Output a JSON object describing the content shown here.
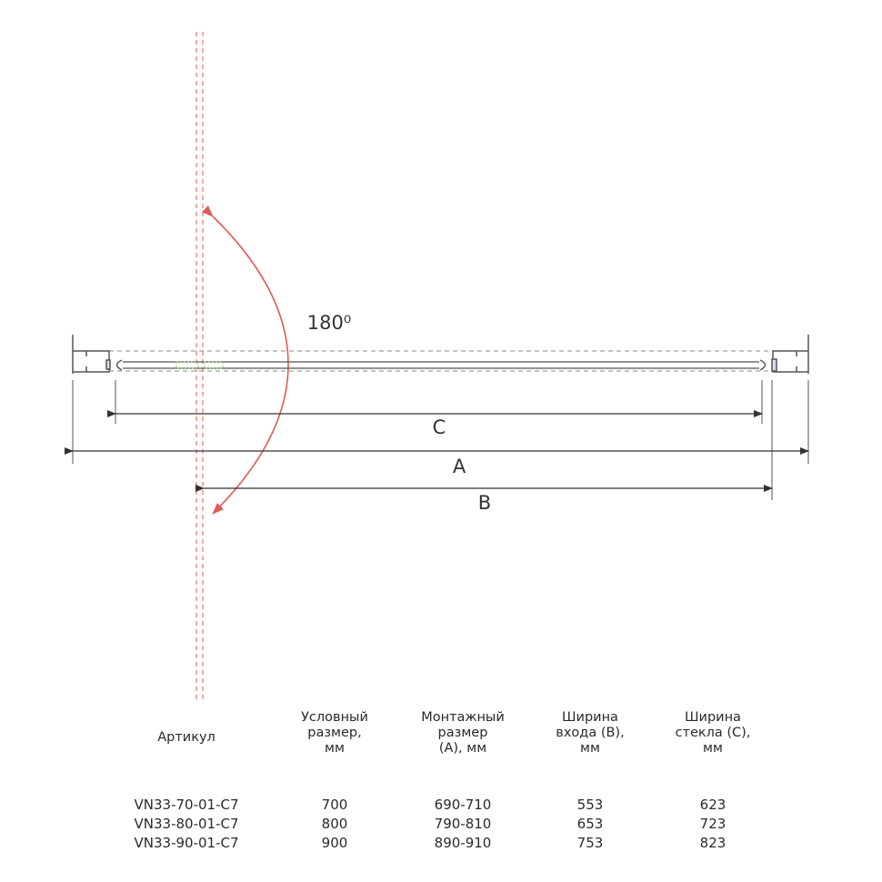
{
  "diagram": {
    "angle_label": "180⁰",
    "dimension_labels": {
      "a": "A",
      "b": "B",
      "c": "C"
    },
    "colors": {
      "lines": "#555555",
      "swing_arc": "#e05a55",
      "door_axis": "#e05a55",
      "glass_marker": "#7bd36a"
    }
  },
  "table": {
    "headers": [
      "Артикул",
      "Условный\nразмер,\nмм",
      "Монтажный\nразмер\n(А), мм",
      "Ширина\nвхода (В),\nмм",
      "Ширина\nстекла (С),\nмм"
    ],
    "rows": [
      [
        "VN33-70-01-C7",
        "700",
        "690-710",
        "553",
        "623"
      ],
      [
        "VN33-80-01-C7",
        "800",
        "790-810",
        "653",
        "723"
      ],
      [
        "VN33-90-01-C7",
        "900",
        "890-910",
        "753",
        "823"
      ]
    ]
  }
}
